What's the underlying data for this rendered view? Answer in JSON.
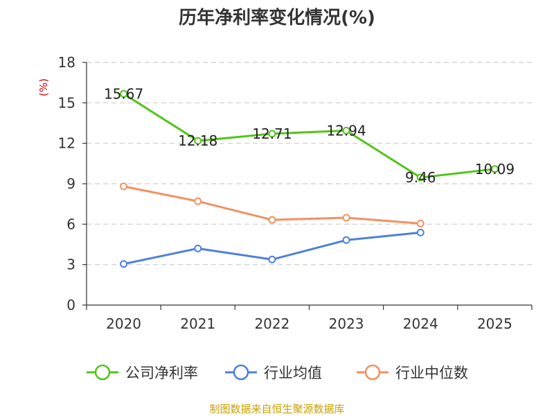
{
  "chart_data": {
    "type": "line",
    "title": "历年净利率变化情况(%)",
    "ylabel": "(%)",
    "categories": [
      "2020",
      "2021",
      "2022",
      "2023",
      "2024",
      "2025"
    ],
    "yticks": [
      0,
      3,
      6,
      9,
      12,
      15,
      18
    ],
    "ylim": [
      0,
      18
    ],
    "grid": true,
    "legend_position": "bottom",
    "series": [
      {
        "name": "公司净利率",
        "color": "#52c41a",
        "values": [
          15.67,
          12.18,
          12.71,
          12.94,
          9.46,
          10.09
        ],
        "labels": [
          "15.67",
          "12.18",
          "12.71",
          "12.94",
          "9.46",
          "10.09"
        ]
      },
      {
        "name": "行业均值",
        "color": "#4e7fdb",
        "values": [
          3.05,
          4.2,
          3.38,
          4.82,
          5.38,
          null
        ]
      },
      {
        "name": "行业中位数",
        "color": "#f39060",
        "values": [
          8.8,
          7.7,
          6.32,
          6.48,
          6.05,
          null
        ]
      }
    ]
  },
  "source": "制图数据来自恒生聚源数据库",
  "colors": {
    "axis": "#333333",
    "grid": "#cccccc",
    "ylabel": "#d00000",
    "source": "#c8a000"
  }
}
